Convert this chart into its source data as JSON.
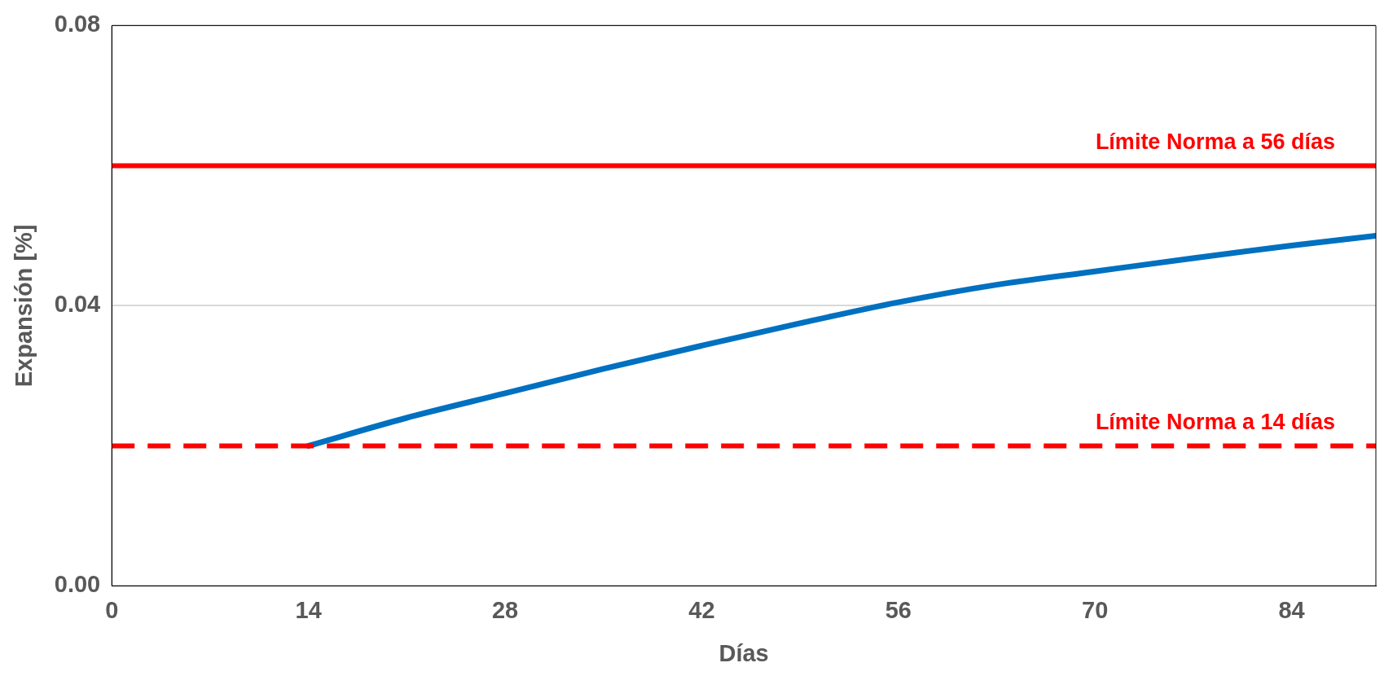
{
  "chart_data": {
    "type": "line",
    "xlabel": "Días",
    "ylabel": "Expansión [%]",
    "x": [
      14,
      21,
      28,
      35,
      42,
      49,
      56,
      63,
      70,
      77,
      84,
      90
    ],
    "series": [
      {
        "color": "#0070c0",
        "values": [
          0.02,
          0.024,
          0.0275,
          0.031,
          0.0343,
          0.0375,
          0.0405,
          0.043,
          0.0449,
          0.0468,
          0.0486,
          0.05
        ]
      }
    ],
    "xlim": [
      0,
      90
    ],
    "xticks": [
      0,
      14,
      28,
      42,
      56,
      70,
      84
    ],
    "ylim": [
      0,
      0.08
    ],
    "yticks": [
      {
        "value": 0,
        "label": "0.00"
      },
      {
        "value": 0.04,
        "label": "0.04"
      },
      {
        "value": 0.08,
        "label": "0.08"
      }
    ],
    "grid": "y",
    "legend": false,
    "marker": "none",
    "line_style": "solid",
    "ref_lines": [
      {
        "axis": "y",
        "value": 0.06,
        "label": "Límite Norma a 56 días",
        "color": "#ff0000",
        "line_style": "solid"
      },
      {
        "axis": "y",
        "value": 0.02,
        "label": "Límite Norma a 14 días",
        "color": "#ff0000",
        "line_style": "dashed"
      }
    ]
  }
}
